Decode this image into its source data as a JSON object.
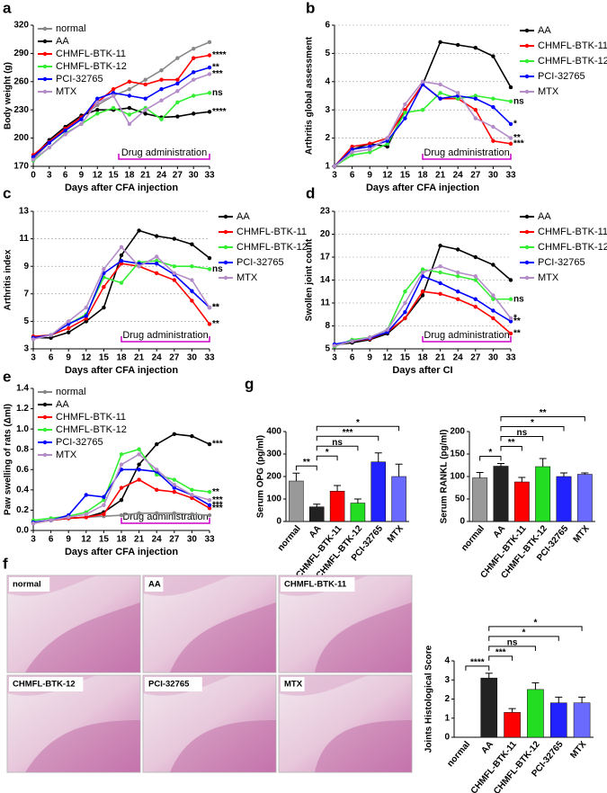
{
  "chart_data": [
    {
      "type": "line",
      "panel": "a",
      "xlabel": "Days after CFA injection",
      "ylabel": "Body weight (g)",
      "x": [
        0,
        3,
        6,
        9,
        12,
        15,
        18,
        21,
        24,
        27,
        30,
        33
      ],
      "xlim": [
        0,
        33
      ],
      "xticks": [
        0,
        3,
        6,
        9,
        12,
        15,
        18,
        21,
        24,
        27,
        30,
        33
      ],
      "ylim": [
        170,
        320
      ],
      "yticks": [
        170,
        200,
        230,
        260,
        290,
        320
      ],
      "grid": false,
      "legend": "upper left",
      "annotation": {
        "text": "Drug administration",
        "x": [
          16,
          33
        ],
        "color": "#cc00cc"
      },
      "series": [
        {
          "name": "normal",
          "color": "#888888",
          "values": [
            178,
            195,
            210,
            222,
            235,
            245,
            252,
            262,
            272,
            285,
            295,
            302
          ]
        },
        {
          "name": "AA",
          "color": "#000000",
          "values": [
            180,
            198,
            212,
            224,
            230,
            230,
            232,
            226,
            222,
            223,
            226,
            228
          ],
          "significance": "****"
        },
        {
          "name": "CHMFL-BTK-11",
          "color": "#ff0000",
          "values": [
            182,
            196,
            210,
            222,
            238,
            252,
            260,
            257,
            262,
            262,
            285,
            288
          ],
          "significance": "****"
        },
        {
          "name": "CHMFL-BTK-12",
          "color": "#33ee33",
          "values": [
            176,
            190,
            205,
            215,
            226,
            232,
            225,
            232,
            220,
            238,
            245,
            248
          ],
          "significance": "ns"
        },
        {
          "name": "PCI-32765",
          "color": "#0000ff",
          "values": [
            180,
            195,
            208,
            220,
            242,
            248,
            245,
            242,
            252,
            258,
            270,
            275
          ],
          "significance": "**"
        },
        {
          "name": "MTX",
          "color": "#b48cc8",
          "values": [
            177,
            190,
            204,
            215,
            238,
            245,
            215,
            230,
            240,
            250,
            262,
            268
          ],
          "significance": "***"
        }
      ]
    },
    {
      "type": "line",
      "panel": "b",
      "xlabel": "Days after CFA injection",
      "ylabel": "Arthritis global assessment",
      "x": [
        3,
        6,
        9,
        12,
        15,
        18,
        21,
        24,
        27,
        30,
        33
      ],
      "xlim": [
        3,
        33
      ],
      "xticks": [
        3,
        6,
        9,
        12,
        15,
        18,
        21,
        24,
        27,
        30,
        33
      ],
      "ylim": [
        1,
        6
      ],
      "yticks": [
        1,
        2,
        3,
        4,
        5,
        6
      ],
      "grid": true,
      "legend": "right",
      "annotation": {
        "text": "Drug administration",
        "x": [
          18,
          33
        ],
        "color": "#cc00cc"
      },
      "series": [
        {
          "name": "AA",
          "color": "#000000",
          "values": [
            1,
            1.6,
            1.8,
            1.7,
            3,
            3.9,
            5.4,
            5.3,
            5.2,
            4.9,
            3.8
          ]
        },
        {
          "name": "CHMFL-BTK-11",
          "color": "#ff0000",
          "values": [
            1,
            1.7,
            1.8,
            2.0,
            3.0,
            3.9,
            3.4,
            3.4,
            3.0,
            1.9,
            1.8
          ],
          "significance": "***"
        },
        {
          "name": "CHMFL-BTK-12",
          "color": "#33ee33",
          "values": [
            1,
            1.4,
            1.5,
            1.8,
            2.9,
            3.0,
            3.6,
            3.4,
            3.5,
            3.4,
            3.3
          ],
          "significance": "ns"
        },
        {
          "name": "PCI-32765",
          "color": "#0000ff",
          "values": [
            1,
            1.6,
            1.7,
            1.9,
            2.7,
            3.9,
            3.4,
            3.5,
            3.4,
            3.1,
            2.5
          ],
          "significance": "*"
        },
        {
          "name": "MTX",
          "color": "#b48cc8",
          "values": [
            1,
            1.5,
            1.6,
            2.0,
            3.2,
            4.0,
            3.9,
            3.6,
            2.7,
            2.4,
            2.0
          ],
          "significance": "**"
        }
      ]
    },
    {
      "type": "line",
      "panel": "c",
      "xlabel": "Days after CFA injection",
      "ylabel": "Arthritis index",
      "x": [
        3,
        6,
        9,
        12,
        15,
        18,
        21,
        24,
        27,
        30,
        33
      ],
      "xlim": [
        3,
        33
      ],
      "xticks": [
        3,
        6,
        9,
        12,
        15,
        18,
        21,
        24,
        27,
        30,
        33
      ],
      "ylim": [
        3,
        13
      ],
      "yticks": [
        3,
        5,
        7,
        9,
        11,
        13
      ],
      "grid": true,
      "legend": "right",
      "annotation": {
        "text": "Drug administration",
        "x": [
          18,
          33
        ],
        "color": "#cc00cc"
      },
      "series": [
        {
          "name": "AA",
          "color": "#000000",
          "values": [
            3.8,
            3.8,
            4.2,
            5,
            6,
            9.8,
            11.6,
            11.2,
            11,
            10.6,
            9.6
          ]
        },
        {
          "name": "CHMFL-BTK-11",
          "color": "#ff0000",
          "values": [
            3.9,
            4,
            4.5,
            5.2,
            7.5,
            9.2,
            9.0,
            8.5,
            8,
            6.5,
            4.8
          ],
          "significance": "**"
        },
        {
          "name": "CHMFL-BTK-12",
          "color": "#33ee33",
          "values": [
            3.8,
            4,
            4.8,
            5.5,
            8.2,
            7.8,
            9.3,
            9.4,
            9,
            9,
            8.8
          ],
          "significance": "ns"
        },
        {
          "name": "PCI-32765",
          "color": "#0000ff",
          "values": [
            3.8,
            4,
            4.8,
            5.4,
            8.5,
            9.4,
            9.2,
            9.2,
            8.4,
            7.2,
            6
          ],
          "significance": "**"
        },
        {
          "name": "MTX",
          "color": "#b48cc8",
          "values": [
            3.7,
            4,
            5,
            6,
            8.8,
            10.4,
            9,
            9.7,
            8.5,
            8,
            6
          ],
          "significance": "**"
        }
      ]
    },
    {
      "type": "line",
      "panel": "d",
      "xlabel": "Days after CI",
      "ylabel": "Swollen joint count",
      "x": [
        3,
        6,
        9,
        12,
        15,
        18,
        21,
        24,
        27,
        30,
        33
      ],
      "xlim": [
        3,
        33
      ],
      "xticks": [
        3,
        6,
        9,
        12,
        15,
        18,
        21,
        24,
        27,
        30,
        33
      ],
      "ylim": [
        5,
        23
      ],
      "yticks": [
        5,
        8,
        11,
        14,
        17,
        20,
        23
      ],
      "grid": true,
      "legend": "right",
      "annotation": {
        "text": "Drug administration",
        "x": [
          18,
          33
        ],
        "color": "#cc00cc"
      },
      "series": [
        {
          "name": "AA",
          "color": "#000000",
          "values": [
            5.5,
            5.8,
            6.2,
            7,
            9,
            12,
            18.5,
            18,
            17,
            16,
            14
          ]
        },
        {
          "name": "CHMFL-BTK-11",
          "color": "#ff0000",
          "values": [
            5.5,
            6,
            6.3,
            7.2,
            9,
            12.5,
            12.2,
            11.5,
            10.5,
            9,
            7
          ],
          "significance": "**"
        },
        {
          "name": "CHMFL-BTK-12",
          "color": "#33ee33",
          "values": [
            5.3,
            6.2,
            6.5,
            7.5,
            12.5,
            15.4,
            15,
            14.5,
            14,
            11.5,
            11.5
          ],
          "significance": "ns"
        },
        {
          "name": "PCI-32765",
          "color": "#0000ff",
          "values": [
            5.6,
            6,
            6.4,
            7.2,
            9.8,
            14.5,
            13.6,
            12.5,
            11.5,
            10,
            8.6
          ],
          "significance": "**"
        },
        {
          "name": "MTX",
          "color": "#b48cc8",
          "values": [
            5.4,
            6,
            6.5,
            7.5,
            11,
            15,
            15.8,
            15,
            14.5,
            12,
            9
          ],
          "significance": "*"
        }
      ]
    },
    {
      "type": "line",
      "panel": "e",
      "xlabel": "Days after CFA injection",
      "ylabel": "Paw swelling of rats (Δml)",
      "x": [
        3,
        6,
        9,
        12,
        15,
        18,
        21,
        24,
        27,
        30,
        33
      ],
      "xlim": [
        3,
        33
      ],
      "xticks": [
        3,
        6,
        9,
        12,
        15,
        18,
        21,
        24,
        27,
        30,
        33
      ],
      "ylim": [
        0,
        1.4
      ],
      "yticks": [
        {
          "value": 0,
          "label": "0.0"
        },
        0.2,
        0.4,
        0.6,
        0.8,
        {
          "value": 1,
          "label": "1.0"
        },
        1.2,
        1.4
      ],
      "grid": false,
      "legend": "upper left",
      "annotation": {
        "text": "Drug administration",
        "x": [
          18,
          33
        ],
        "color": "#cc00cc"
      },
      "series": [
        {
          "name": "normal",
          "color": "#888888",
          "values": [
            0.08,
            0.1,
            0.12,
            0.13,
            0.14,
            0.15,
            0.17,
            0.17,
            0.17,
            0.16,
            0.15
          ]
        },
        {
          "name": "AA",
          "color": "#000000",
          "values": [
            0.08,
            0.1,
            0.12,
            0.13,
            0.18,
            0.3,
            0.65,
            0.85,
            0.95,
            0.93,
            0.85
          ],
          "significance": "***"
        },
        {
          "name": "CHMFL-BTK-11",
          "color": "#ff0000",
          "values": [
            0.07,
            0.1,
            0.12,
            0.13,
            0.16,
            0.42,
            0.5,
            0.4,
            0.38,
            0.32,
            0.22
          ],
          "significance": "***"
        },
        {
          "name": "CHMFL-BTK-12",
          "color": "#33ee33",
          "values": [
            0.1,
            0.12,
            0.14,
            0.18,
            0.3,
            0.75,
            0.8,
            0.55,
            0.5,
            0.4,
            0.38
          ],
          "significance": "**"
        },
        {
          "name": "PCI-32765",
          "color": "#0000ff",
          "values": [
            0.08,
            0.1,
            0.15,
            0.35,
            0.33,
            0.6,
            0.6,
            0.58,
            0.42,
            0.35,
            0.25
          ],
          "significance": "***"
        },
        {
          "name": "MTX",
          "color": "#b48cc8",
          "values": [
            0.07,
            0.1,
            0.13,
            0.16,
            0.25,
            0.65,
            0.75,
            0.6,
            0.45,
            0.35,
            0.3
          ],
          "significance": "***"
        }
      ]
    },
    {
      "type": "bar",
      "panel": "g",
      "ylabel": "Serum OPG (pg/ml)",
      "categories": [
        "normal",
        "AA",
        "CHMFL-BTK-11",
        "CHMFL-BTK-12",
        "PCI-32765",
        "MTX"
      ],
      "values": [
        180,
        65,
        135,
        82,
        265,
        200
      ],
      "errors": [
        35,
        12,
        25,
        18,
        40,
        55
      ],
      "colors": [
        "#999999",
        "#222222",
        "#ff0000",
        "#22dd22",
        "#2222ff",
        "#6a6aff"
      ],
      "ylim": [
        0,
        400
      ],
      "yticks": [
        0,
        100,
        200,
        300,
        400
      ],
      "brackets": [
        {
          "from": 0,
          "to": 1,
          "label": "**"
        },
        {
          "from": 1,
          "to": 2,
          "label": "*"
        },
        {
          "from": 1,
          "to": 3,
          "label": "ns"
        },
        {
          "from": 1,
          "to": 4,
          "label": "***"
        },
        {
          "from": 1,
          "to": 5,
          "label": "*"
        }
      ]
    },
    {
      "type": "bar",
      "ylabel": "Serum RANKL (pg/ml)",
      "categories": [
        "normal",
        "AA",
        "CHMFL-BTK-11",
        "CHMFL-BTK-12",
        "PCI-32765",
        "MTX"
      ],
      "values": [
        97,
        123,
        88,
        122,
        100,
        105
      ],
      "errors": [
        12,
        6,
        10,
        18,
        8,
        3
      ],
      "colors": [
        "#999999",
        "#222222",
        "#ff0000",
        "#22dd22",
        "#2222ff",
        "#6a6aff"
      ],
      "ylim": [
        0,
        200
      ],
      "yticks": [
        0,
        50,
        100,
        150,
        200
      ],
      "brackets": [
        {
          "from": 0,
          "to": 1,
          "label": "*"
        },
        {
          "from": 1,
          "to": 2,
          "label": "**"
        },
        {
          "from": 1,
          "to": 3,
          "label": "ns"
        },
        {
          "from": 1,
          "to": 4,
          "label": "*"
        },
        {
          "from": 1,
          "to": 5,
          "label": "**"
        }
      ]
    },
    {
      "type": "bar",
      "ylabel": "Joints Histological Score",
      "categories": [
        "normal",
        "AA",
        "CHMFL-BTK-11",
        "CHMFL-BTK-12",
        "PCI-32765",
        "MTX"
      ],
      "values": [
        0,
        3.1,
        1.3,
        2.5,
        1.8,
        1.8
      ],
      "errors": [
        0,
        0.25,
        0.2,
        0.35,
        0.3,
        0.3
      ],
      "colors": [
        "#999999",
        "#222222",
        "#ff0000",
        "#22dd22",
        "#2222ff",
        "#6a6aff"
      ],
      "ylim": [
        0,
        4
      ],
      "yticks": [
        0,
        1,
        2,
        3,
        4
      ],
      "brackets": [
        {
          "from": 0,
          "to": 1,
          "label": "****"
        },
        {
          "from": 1,
          "to": 2,
          "label": "***"
        },
        {
          "from": 1,
          "to": 3,
          "label": "ns"
        },
        {
          "from": 1,
          "to": 4,
          "label": "*"
        },
        {
          "from": 1,
          "to": 5,
          "label": "*"
        }
      ]
    }
  ],
  "histology": {
    "panel": "f",
    "labels": [
      "normal",
      "AA",
      "CHMFL-BTK-11",
      "CHMFL-BTK-12",
      "PCI-32765",
      "MTX"
    ]
  }
}
